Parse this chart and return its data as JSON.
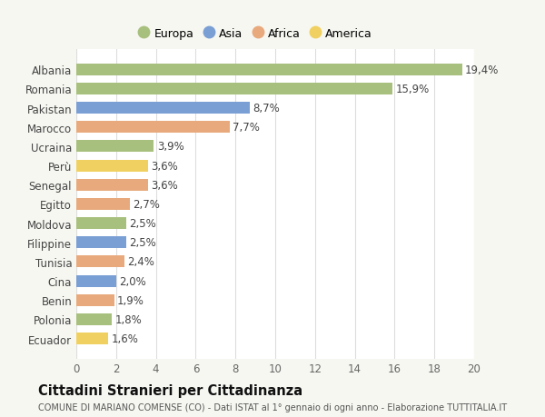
{
  "categories": [
    "Albania",
    "Romania",
    "Pakistan",
    "Marocco",
    "Ucraina",
    "Perù",
    "Senegal",
    "Egitto",
    "Moldova",
    "Filippine",
    "Tunisia",
    "Cina",
    "Benin",
    "Polonia",
    "Ecuador"
  ],
  "values": [
    19.4,
    15.9,
    8.7,
    7.7,
    3.9,
    3.6,
    3.6,
    2.7,
    2.5,
    2.5,
    2.4,
    2.0,
    1.9,
    1.8,
    1.6
  ],
  "labels": [
    "19,4%",
    "15,9%",
    "8,7%",
    "7,7%",
    "3,9%",
    "3,6%",
    "3,6%",
    "2,7%",
    "2,5%",
    "2,5%",
    "2,4%",
    "2,0%",
    "1,9%",
    "1,8%",
    "1,6%"
  ],
  "continents": [
    "Europa",
    "Europa",
    "Asia",
    "Africa",
    "Europa",
    "America",
    "Africa",
    "Africa",
    "Europa",
    "Asia",
    "Africa",
    "Asia",
    "Africa",
    "Europa",
    "America"
  ],
  "colors": {
    "Europa": "#a8c07e",
    "Asia": "#7a9fd4",
    "Africa": "#e8a97c",
    "America": "#f0d060"
  },
  "legend_order": [
    "Europa",
    "Asia",
    "Africa",
    "America"
  ],
  "title": "Cittadini Stranieri per Cittadinanza",
  "subtitle": "COMUNE DI MARIANO COMENSE (CO) - Dati ISTAT al 1° gennaio di ogni anno - Elaborazione TUTTITALIA.IT",
  "xlim": [
    0,
    20
  ],
  "xticks": [
    0,
    2,
    4,
    6,
    8,
    10,
    12,
    14,
    16,
    18,
    20
  ],
  "background_color": "#f7f7f2",
  "plot_bg_color": "#ffffff",
  "grid_color": "#dddddd",
  "label_fontsize": 8.5,
  "title_fontsize": 10.5,
  "subtitle_fontsize": 7.0,
  "bar_height": 0.62
}
